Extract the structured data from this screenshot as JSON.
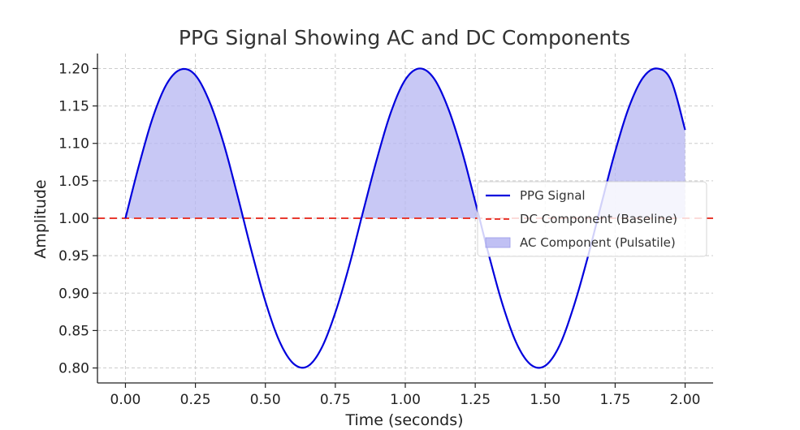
{
  "chart_data": {
    "type": "line",
    "title": "PPG Signal Showing AC and DC Components",
    "xlabel": "Time (seconds)",
    "ylabel": "Amplitude",
    "xlim": [
      -0.1,
      2.1
    ],
    "ylim": [
      0.78,
      1.22
    ],
    "xticks": [
      0.0,
      0.25,
      0.5,
      0.75,
      1.0,
      1.25,
      1.5,
      1.75,
      2.0
    ],
    "xtick_labels": [
      "0.00",
      "0.25",
      "0.50",
      "0.75",
      "1.00",
      "1.25",
      "1.50",
      "1.75",
      "2.00"
    ],
    "yticks": [
      0.8,
      0.85,
      0.9,
      0.95,
      1.0,
      1.05,
      1.1,
      1.15,
      1.2
    ],
    "ytick_labels": [
      "0.80",
      "0.85",
      "0.90",
      "0.95",
      "1.00",
      "1.05",
      "1.10",
      "1.15",
      "1.20"
    ],
    "grid": true,
    "legend_position": "center-right",
    "series": [
      {
        "name": "PPG Signal",
        "kind": "line",
        "color": "#0000dd",
        "x": [
          0.0,
          0.05,
          0.1,
          0.15,
          0.2,
          0.25,
          0.3,
          0.35,
          0.4,
          0.45,
          0.5,
          0.55,
          0.6,
          0.65,
          0.7,
          0.75,
          0.8,
          0.85,
          0.9,
          0.95,
          1.0,
          1.05,
          1.1,
          1.15,
          1.2,
          1.25,
          1.3,
          1.35,
          1.4,
          1.45,
          1.5,
          1.55,
          1.6,
          1.65,
          1.7,
          1.75,
          1.8,
          1.85,
          1.9,
          1.95,
          2.0
        ],
        "y": [
          1.0,
          1.073,
          1.137,
          1.181,
          1.199,
          1.191,
          1.156,
          1.101,
          1.031,
          0.957,
          0.889,
          0.836,
          0.806,
          0.802,
          0.826,
          0.874,
          0.937,
          1.01,
          1.081,
          1.143,
          1.185,
          1.2,
          1.188,
          1.15,
          1.093,
          1.022,
          0.949,
          0.882,
          0.831,
          0.804,
          0.803,
          0.829,
          0.88,
          0.945,
          1.018,
          1.089,
          1.149,
          1.188,
          1.2,
          1.184,
          1.118
        ]
      },
      {
        "name": "DC Component (Baseline)",
        "kind": "hline",
        "color": "#e83a30",
        "y": 1.0
      },
      {
        "name": "AC Component (Pulsatile)",
        "kind": "fill_above_baseline",
        "color": "#b5b5f2"
      }
    ]
  }
}
